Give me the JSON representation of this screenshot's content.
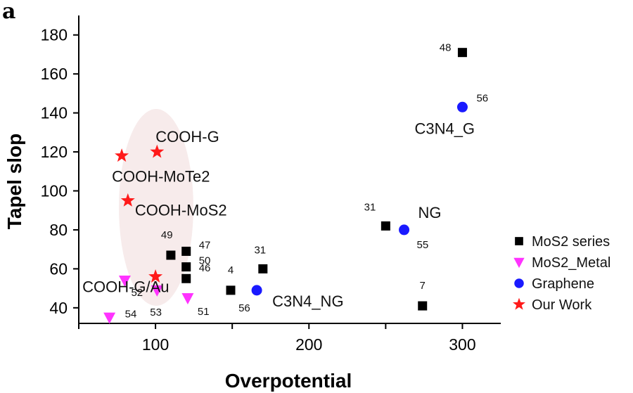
{
  "chart_data": {
    "type": "scatter",
    "panel_label": "a",
    "xlabel": "Overpotential",
    "ylabel": "Tapel slop",
    "xlim": [
      50,
      325
    ],
    "ylim": [
      32,
      190
    ],
    "xticks": [
      100,
      200,
      300
    ],
    "yticks": [
      40,
      60,
      80,
      100,
      120,
      140,
      160,
      180
    ],
    "colors": {
      "mos2": "#000000",
      "metal": "#ff33ff",
      "graphene": "#1a1aff",
      "ours": "#ff1a1a",
      "ellipse": "#f2dddd"
    },
    "series": [
      {
        "name": "MoS2 series",
        "marker": "square",
        "color": "#000000",
        "points": [
          {
            "x": 300,
            "y": 171,
            "label": "48"
          },
          {
            "x": 250,
            "y": 82,
            "label": "31"
          },
          {
            "x": 110,
            "y": 67,
            "label": "49"
          },
          {
            "x": 120,
            "y": 69,
            "label": "47"
          },
          {
            "x": 120,
            "y": 61,
            "label": "50"
          },
          {
            "x": 120,
            "y": 55,
            "label": "46"
          },
          {
            "x": 170,
            "y": 60,
            "label": "31"
          },
          {
            "x": 149,
            "y": 49,
            "label": "4"
          },
          {
            "x": 274,
            "y": 41,
            "label": "7"
          }
        ]
      },
      {
        "name": "MoS2_Metal",
        "marker": "triangle-down",
        "color": "#ff33ff",
        "points": [
          {
            "x": 80,
            "y": 54,
            "label": "52"
          },
          {
            "x": 101,
            "y": 49,
            "label": "53"
          },
          {
            "x": 121,
            "y": 45,
            "label": "51"
          },
          {
            "x": 70,
            "y": 35,
            "label": "54"
          }
        ]
      },
      {
        "name": "Graphene",
        "marker": "circle",
        "color": "#1a1aff",
        "points": [
          {
            "x": 300,
            "y": 143,
            "label": "56"
          },
          {
            "x": 262,
            "y": 80,
            "label": "55"
          },
          {
            "x": 166,
            "y": 49,
            "label": "56"
          }
        ]
      },
      {
        "name": "Our Work",
        "marker": "star",
        "color": "#ff1a1a",
        "points": [
          {
            "x": 78,
            "y": 118
          },
          {
            "x": 101,
            "y": 120
          },
          {
            "x": 82,
            "y": 95
          },
          {
            "x": 100,
            "y": 56
          }
        ]
      }
    ],
    "annotations": [
      {
        "text": "C3N4_G",
        "x": 300,
        "y": 143
      },
      {
        "text": "NG",
        "x": 262,
        "y": 80
      },
      {
        "text": "C3N4_NG",
        "x": 166,
        "y": 49
      },
      {
        "text": "COOH-G",
        "x": 101,
        "y": 120
      },
      {
        "text": "COOH-MoTe2",
        "x": 78,
        "y": 118
      },
      {
        "text": "COOH-MoS2",
        "x": 82,
        "y": 95
      },
      {
        "text": "COOH-G/Au",
        "x": 100,
        "y": 56
      }
    ],
    "legend": {
      "position": "right"
    }
  }
}
